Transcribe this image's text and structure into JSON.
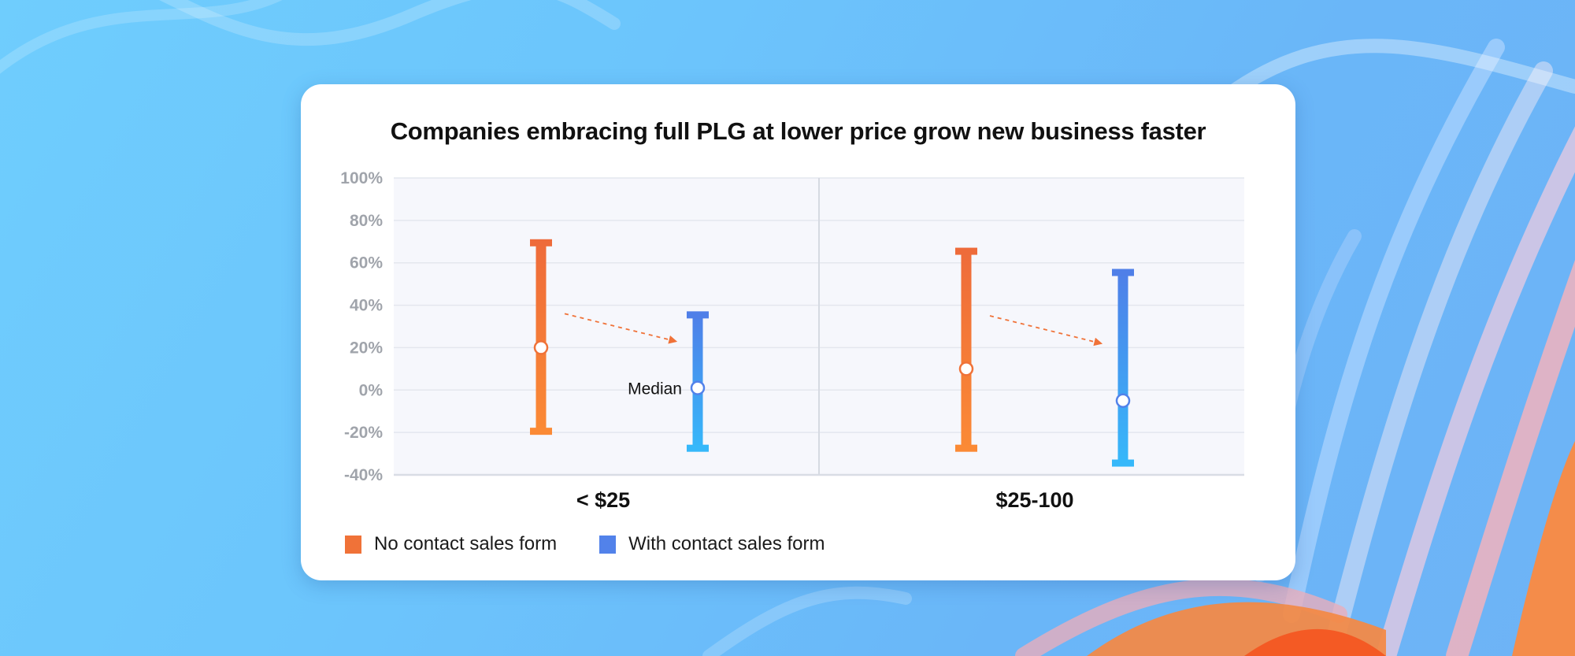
{
  "colors": {
    "orange": "#f07238",
    "orange_light": "#fb8a35",
    "blue": "#5282ea",
    "blue_light": "#3bb6f8",
    "grid": "#e4e7ee",
    "plot_bg": "#f6f7fc",
    "tick_text": "#a0a4ab"
  },
  "chart_data": {
    "type": "range",
    "title": "Companies embracing full PLG at lower price grow new business faster",
    "xlabel": "",
    "ylabel": "",
    "ylim": [
      -40,
      100
    ],
    "yticks": [
      100,
      80,
      60,
      40,
      20,
      0,
      -20,
      -40
    ],
    "ytick_labels": [
      "100%",
      "80%",
      "60%",
      "40%",
      "20%",
      "0%",
      "-20%",
      "-40%"
    ],
    "grid": true,
    "categories": [
      "< $25",
      "$25-100"
    ],
    "series": [
      {
        "name": "No contact sales form",
        "color": "#f07238",
        "values": [
          {
            "low": -20,
            "high": 70,
            "median": 20
          },
          {
            "low": -28,
            "high": 66,
            "median": 10
          }
        ]
      },
      {
        "name": "With contact sales form",
        "color": "#5282ea",
        "values": [
          {
            "low": -28,
            "high": 36,
            "median": 1
          },
          {
            "low": -35,
            "high": 56,
            "median": -5
          }
        ]
      }
    ],
    "annotations": [
      {
        "text": "Median",
        "category": "< $25",
        "series": "With contact sales form"
      }
    ],
    "arrows": [
      {
        "category": "< $25",
        "from": "No contact sales form",
        "to": "With contact sales form",
        "style": "dashed"
      },
      {
        "category": "$25-100",
        "from": "No contact sales form",
        "to": "With contact sales form",
        "style": "dashed"
      }
    ],
    "legend_position": "bottom-left"
  }
}
